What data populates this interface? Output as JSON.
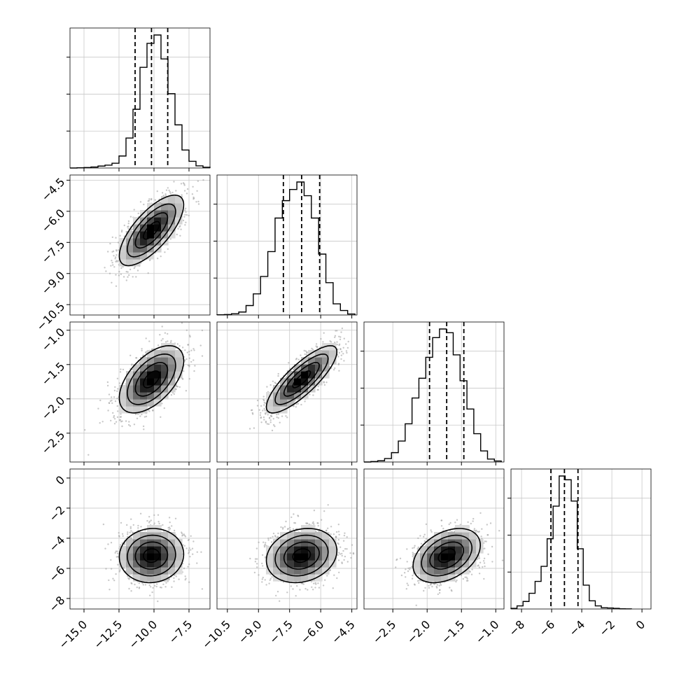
{
  "chart_data": {
    "type": "corner",
    "grid": true,
    "parameters": [
      {
        "range": [
          -16,
          -6
        ],
        "ticks": [
          -15.0,
          -12.5,
          -10.0,
          -7.5
        ],
        "tick_labels": [
          "−15.0",
          "−12.5",
          "−10.0",
          "−7.5"
        ],
        "quantiles": [
          -11.35,
          -10.18,
          -9.02
        ],
        "hist": {
          "bins": [
            -16,
            -15.5,
            -15,
            -14.5,
            -14,
            -13.5,
            -13,
            -12.5,
            -12,
            -11.5,
            -11,
            -10.5,
            -10,
            -9.5,
            -9,
            -8.5,
            -8,
            -7.5,
            -7,
            -6.5,
            -6
          ],
          "counts": [
            0,
            1,
            2,
            4,
            8,
            12,
            20,
            50,
            125,
            245,
            420,
            520,
            555,
            455,
            310,
            180,
            75,
            28,
            9,
            3
          ]
        },
        "scatter": {
          "mean": -10.18,
          "sd": 1.15
        }
      },
      {
        "range": [
          -11,
          -4.25
        ],
        "ticks": [
          -10.5,
          -9.0,
          -7.5,
          -6.0,
          -4.5
        ],
        "tick_labels": [
          "−10.5",
          "−9.0",
          "−7.5",
          "−6.0",
          "−4.5"
        ],
        "quantiles": [
          -7.8,
          -6.92,
          -6.05
        ],
        "hist": {
          "bins": [
            -11,
            -10.65,
            -10.3,
            -9.95,
            -9.6,
            -9.25,
            -8.9,
            -8.55,
            -8.2,
            -7.85,
            -7.5,
            -7.15,
            -6.8,
            -6.45,
            -6.1,
            -5.75,
            -5.4,
            -5.05,
            -4.7,
            -4.35
          ],
          "counts": [
            1,
            2,
            5,
            12,
            38,
            85,
            155,
            255,
            390,
            460,
            505,
            535,
            480,
            390,
            245,
            130,
            45,
            18,
            4
          ]
        },
        "scatter": {
          "mean": -6.92,
          "sd": 0.85
        }
      },
      {
        "range": [
          -2.92,
          -0.88
        ],
        "ticks": [
          -2.5,
          -2.0,
          -1.5,
          -1.0
        ],
        "tick_labels": [
          "−2.5",
          "−2.0",
          "−1.5",
          "−1.0"
        ],
        "quantiles": [
          -1.965,
          -1.715,
          -1.465
        ],
        "hist": {
          "bins": [
            -2.92,
            -2.82,
            -2.72,
            -2.62,
            -2.52,
            -2.42,
            -2.32,
            -2.22,
            -2.12,
            -2.02,
            -1.92,
            -1.82,
            -1.72,
            -1.62,
            -1.52,
            -1.42,
            -1.32,
            -1.22,
            -1.12,
            -1.02,
            -0.92
          ],
          "counts": [
            0,
            2,
            5,
            14,
            38,
            85,
            155,
            260,
            340,
            425,
            505,
            540,
            525,
            435,
            330,
            215,
            115,
            45,
            12,
            4
          ]
        },
        "scatter": {
          "mean": -1.715,
          "sd": 0.245
        }
      },
      {
        "range": [
          -8.7,
          0.6
        ],
        "ticks": [
          -8,
          -6,
          -4,
          -2,
          0
        ],
        "tick_labels": [
          "−8",
          "−6",
          "−4",
          "−2",
          "0"
        ],
        "quantiles": [
          -6.05,
          -5.15,
          -4.25
        ],
        "hist": {
          "bins": [
            -8.7,
            -8.3,
            -7.9,
            -7.5,
            -7.1,
            -6.7,
            -6.3,
            -5.9,
            -5.5,
            -5.1,
            -4.7,
            -4.3,
            -3.9,
            -3.5,
            -3.1,
            -2.7,
            -2.3,
            -1.9,
            -1.5,
            -1.1,
            -0.7
          ],
          "counts": [
            5,
            25,
            60,
            125,
            220,
            340,
            560,
            820,
            1060,
            1030,
            860,
            480,
            190,
            65,
            25,
            10,
            8,
            5,
            2,
            1
          ]
        },
        "scatter": {
          "mean": -5.15,
          "sd": 0.9
        }
      }
    ],
    "correlations": {
      "1-0": 0.72,
      "2-0": 0.55,
      "2-1": 0.82,
      "3-0": 0.05,
      "3-1": 0.18,
      "3-2": 0.38
    },
    "colors": {
      "hist": "#000000",
      "scatter": "#9a9a9a",
      "contour": "#000000",
      "grid": "#c8c8c8",
      "quantile": "#000000"
    }
  }
}
